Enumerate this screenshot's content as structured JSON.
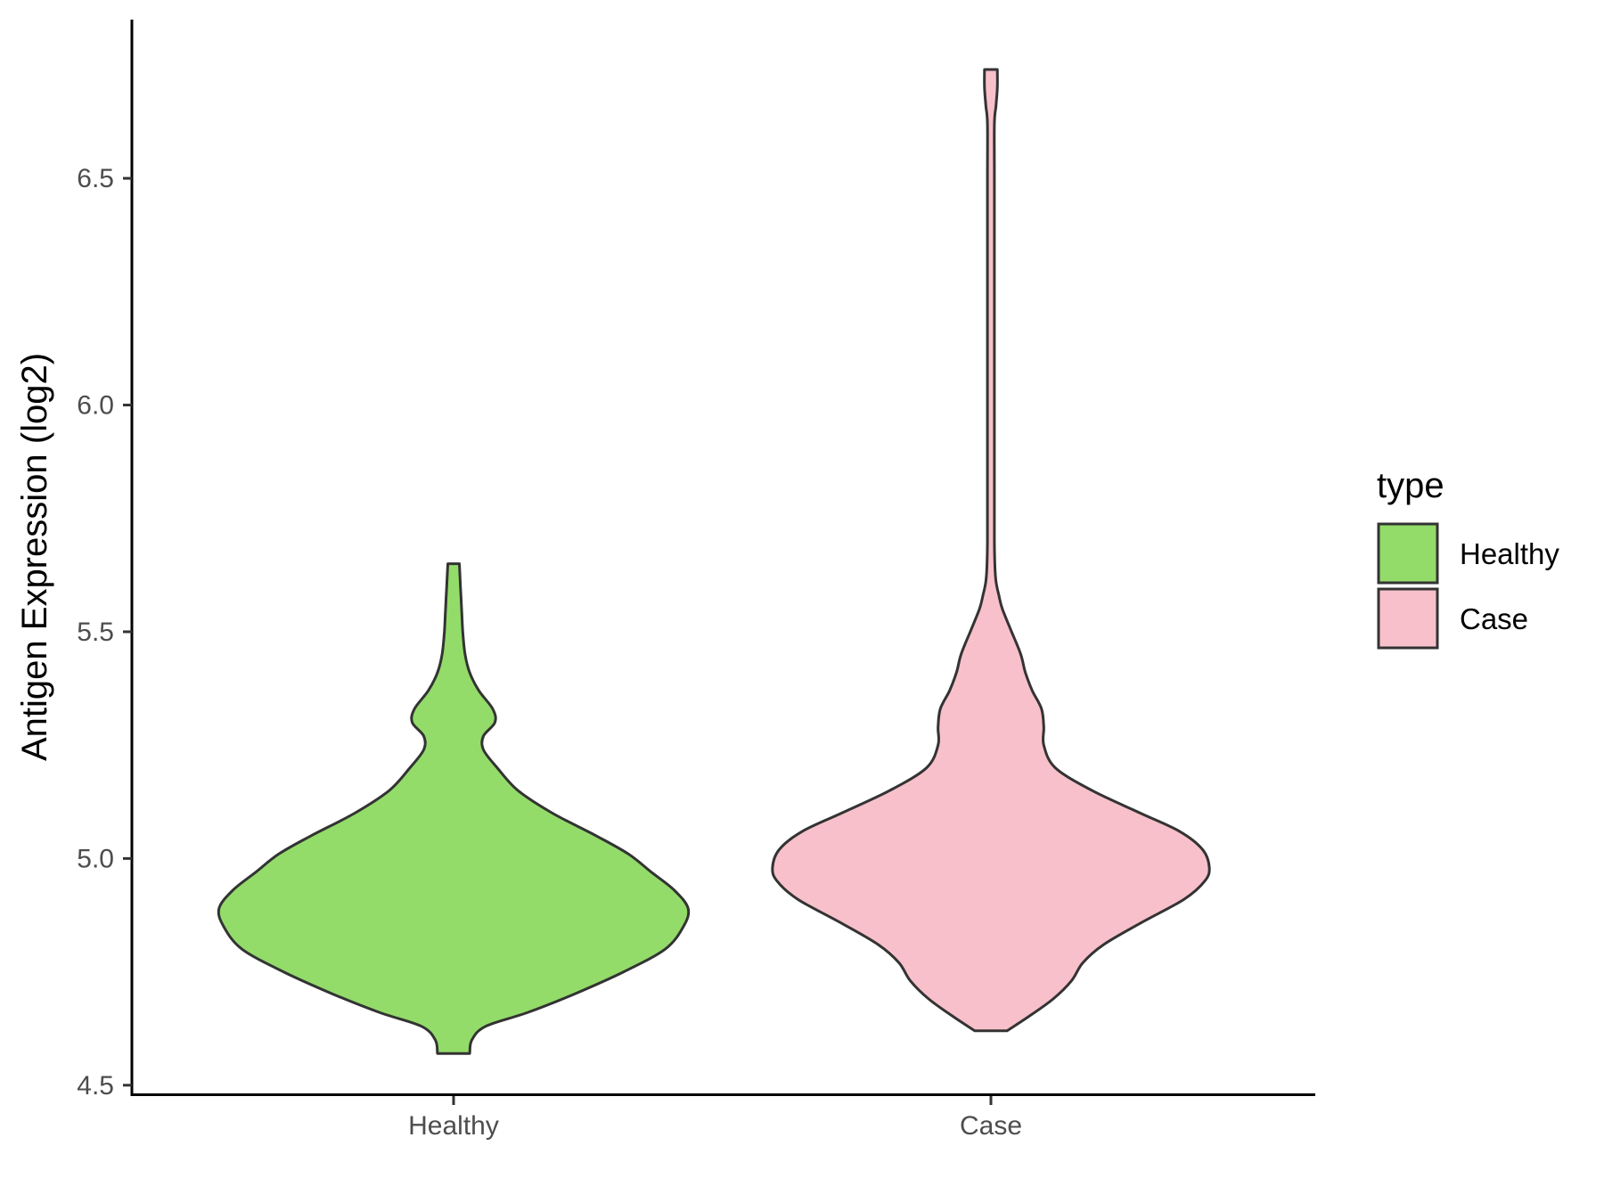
{
  "chart_data": {
    "type": "violin",
    "title": "",
    "xlabel": "",
    "ylabel": "Antigen Expression (log2)",
    "ylim": [
      4.48,
      6.85
    ],
    "yticks": [
      "4.5",
      "5.0",
      "5.5",
      "6.0",
      "6.5"
    ],
    "categories": [
      "Healthy",
      "Case"
    ],
    "grid": false,
    "legend": {
      "title": "type",
      "position": "right",
      "entries": [
        {
          "label": "Healthy",
          "color": "#93dc6a"
        },
        {
          "label": "Case",
          "color": "#f8c0cb"
        }
      ]
    },
    "series": [
      {
        "category": "Healthy",
        "color": "#93dc6a",
        "min": 4.57,
        "max": 5.65,
        "density": [
          [
            4.57,
            0.07
          ],
          [
            4.6,
            0.08
          ],
          [
            4.63,
            0.14
          ],
          [
            4.66,
            0.32
          ],
          [
            4.7,
            0.52
          ],
          [
            4.75,
            0.74
          ],
          [
            4.8,
            0.92
          ],
          [
            4.85,
            1.0
          ],
          [
            4.89,
            1.02
          ],
          [
            4.93,
            0.96
          ],
          [
            4.97,
            0.86
          ],
          [
            5.01,
            0.76
          ],
          [
            5.05,
            0.62
          ],
          [
            5.1,
            0.43
          ],
          [
            5.15,
            0.28
          ],
          [
            5.2,
            0.19
          ],
          [
            5.24,
            0.13
          ],
          [
            5.27,
            0.13
          ],
          [
            5.3,
            0.18
          ],
          [
            5.33,
            0.17
          ],
          [
            5.37,
            0.11
          ],
          [
            5.41,
            0.07
          ],
          [
            5.45,
            0.05
          ],
          [
            5.5,
            0.04
          ],
          [
            5.55,
            0.035
          ],
          [
            5.6,
            0.03
          ],
          [
            5.65,
            0.025
          ]
        ]
      },
      {
        "category": "Case",
        "color": "#f8c0cb",
        "min": 4.62,
        "max": 6.74,
        "density": [
          [
            4.62,
            0.07
          ],
          [
            4.65,
            0.16
          ],
          [
            4.69,
            0.27
          ],
          [
            4.73,
            0.35
          ],
          [
            4.77,
            0.4
          ],
          [
            4.81,
            0.49
          ],
          [
            4.86,
            0.66
          ],
          [
            4.91,
            0.84
          ],
          [
            4.95,
            0.93
          ],
          [
            4.98,
            0.95
          ],
          [
            5.02,
            0.92
          ],
          [
            5.06,
            0.82
          ],
          [
            5.1,
            0.65
          ],
          [
            5.15,
            0.44
          ],
          [
            5.2,
            0.28
          ],
          [
            5.25,
            0.23
          ],
          [
            5.29,
            0.23
          ],
          [
            5.33,
            0.22
          ],
          [
            5.37,
            0.18
          ],
          [
            5.41,
            0.15
          ],
          [
            5.45,
            0.13
          ],
          [
            5.5,
            0.09
          ],
          [
            5.55,
            0.05
          ],
          [
            5.58,
            0.035
          ],
          [
            5.62,
            0.02
          ],
          [
            5.7,
            0.015
          ],
          [
            5.9,
            0.015
          ],
          [
            6.2,
            0.015
          ],
          [
            6.5,
            0.015
          ],
          [
            6.62,
            0.015
          ],
          [
            6.66,
            0.022
          ],
          [
            6.7,
            0.028
          ],
          [
            6.74,
            0.028
          ]
        ]
      }
    ]
  }
}
